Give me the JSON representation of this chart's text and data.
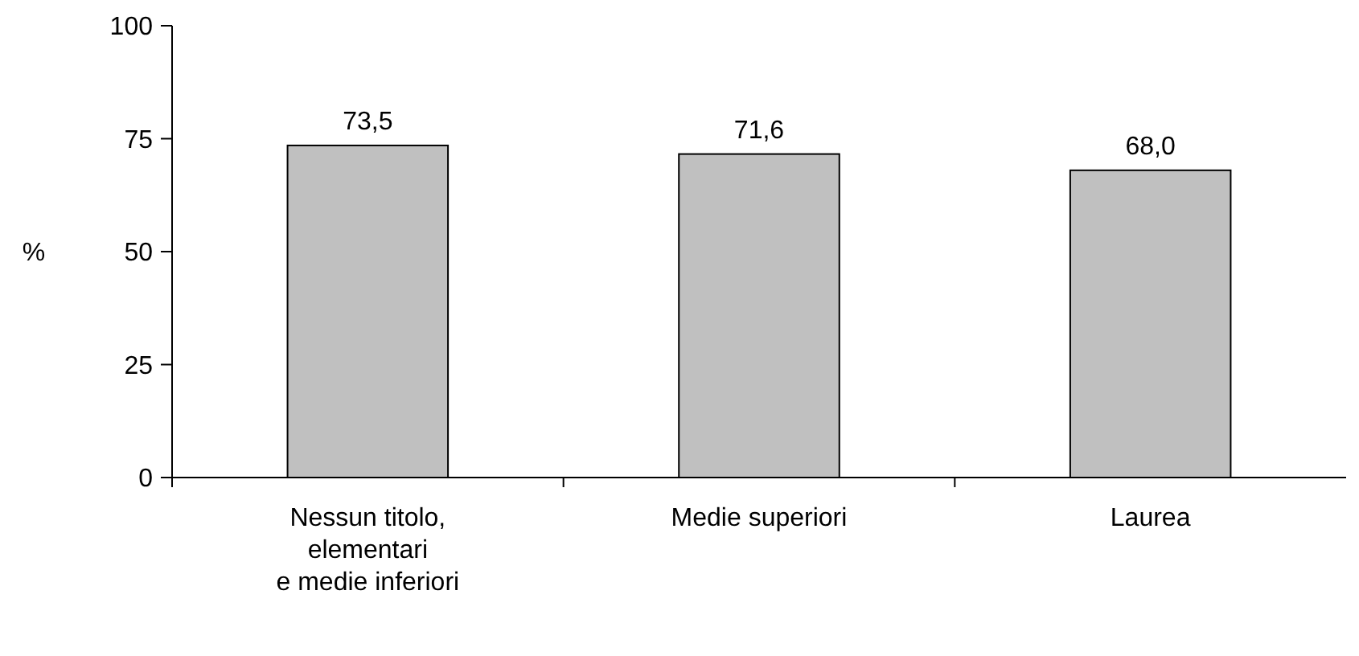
{
  "chart_data": {
    "type": "bar",
    "ylabel": "%",
    "categories": [
      "Nessun titolo,\nelementari\ne medie inferiori",
      "Medie superiori",
      "Laurea"
    ],
    "values": [
      73.5,
      71.6,
      68.0
    ],
    "value_labels": [
      "73,5",
      "71,6",
      "68,0"
    ],
    "color": "#c0c0c0",
    "ylim": [
      0,
      100
    ],
    "yticks": [
      0,
      25,
      50,
      75,
      100
    ],
    "grid": false
  }
}
